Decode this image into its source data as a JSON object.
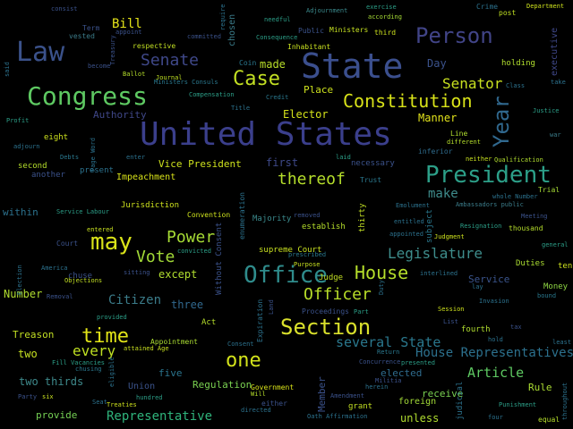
{
  "words": [
    {
      "text": "United States",
      "color": "#3b3f8c"
    },
    {
      "text": "State",
      "color": "#3b4f8e"
    },
    {
      "text": "Congress",
      "color": "#5ec962"
    },
    {
      "text": "Law",
      "color": "#3b528b"
    },
    {
      "text": "President",
      "color": "#2c9f88"
    },
    {
      "text": "Section",
      "color": "#d9e02c"
    },
    {
      "text": "may",
      "color": "#d8e219"
    },
    {
      "text": "Person",
      "color": "#414487"
    },
    {
      "text": "Office",
      "color": "#2f8c8c"
    },
    {
      "text": "Year",
      "color": "#30688e"
    },
    {
      "text": "Constitution",
      "color": "#d8e219"
    },
    {
      "text": "Case",
      "color": "#c2df23"
    },
    {
      "text": "House",
      "color": "#b5de2b"
    },
    {
      "text": "Senate",
      "color": "#3f4889"
    },
    {
      "text": "time",
      "color": "#e2e418"
    },
    {
      "text": "one",
      "color": "#d2e21b"
    },
    {
      "text": "Legislature",
      "color": "#3e8d8c"
    },
    {
      "text": "Senator",
      "color": "#c8e020"
    },
    {
      "text": "Power",
      "color": "#a6db35"
    },
    {
      "text": "Vote",
      "color": "#a2da37"
    },
    {
      "text": "Officer",
      "color": "#b8de29"
    },
    {
      "text": "thereof",
      "color": "#b5de2b"
    },
    {
      "text": "Citizen",
      "color": "#3b7c8a"
    },
    {
      "text": "every",
      "color": "#bfe022"
    },
    {
      "text": "Article",
      "color": "#5ec962"
    },
    {
      "text": "several State",
      "color": "#2a788e"
    },
    {
      "text": "House Representatives",
      "color": "#2c718e"
    },
    {
      "text": "Representative",
      "color": "#2fb47c"
    },
    {
      "text": "Bill",
      "color": "#e5e419"
    },
    {
      "text": "made",
      "color": "#b8de29"
    },
    {
      "text": "first",
      "color": "#3e4989"
    },
    {
      "text": "make",
      "color": "#3f8c8c"
    },
    {
      "text": "Number",
      "color": "#b0dd2f"
    },
    {
      "text": "Manner",
      "color": "#e1e21b"
    },
    {
      "text": "Elector",
      "color": "#d4e21a"
    },
    {
      "text": "Place",
      "color": "#cde11d"
    },
    {
      "text": "Vice President",
      "color": "#cde11d"
    },
    {
      "text": "Treason",
      "color": "#c2df23"
    },
    {
      "text": "two thirds",
      "color": "#3e8a8c"
    },
    {
      "text": "two",
      "color": "#c5e021"
    },
    {
      "text": "three",
      "color": "#31688e"
    },
    {
      "text": "except",
      "color": "#b0dd2f"
    },
    {
      "text": "Authority",
      "color": "#3f4788"
    },
    {
      "text": "Day",
      "color": "#3b528b"
    },
    {
      "text": "within",
      "color": "#2c728e"
    },
    {
      "text": "provide",
      "color": "#75d054"
    },
    {
      "text": "unless",
      "color": "#b0dd2f"
    },
    {
      "text": "five",
      "color": "#2b758e"
    },
    {
      "text": "elected",
      "color": "#2f6c8e"
    },
    {
      "text": "receive",
      "color": "#7ad151"
    },
    {
      "text": "Rule",
      "color": "#aadc32"
    },
    {
      "text": "Service",
      "color": "#3a548c"
    },
    {
      "text": "Regulation",
      "color": "#7ad151"
    },
    {
      "text": "Union",
      "color": "#3b538b"
    },
    {
      "text": "Impeachment",
      "color": "#d8e219"
    },
    {
      "text": "Jurisdiction",
      "color": "#cde11d"
    },
    {
      "text": "supreme Court",
      "color": "#c8e020"
    },
    {
      "text": "establish",
      "color": "#b5de2b"
    },
    {
      "text": "Majority",
      "color": "#3b8a8d"
    },
    {
      "text": "Convention",
      "color": "#cde11d"
    },
    {
      "text": "Money",
      "color": "#8fd744"
    },
    {
      "text": "Duties",
      "color": "#aadc32"
    },
    {
      "text": "fourth",
      "color": "#b0dd2f"
    },
    {
      "text": "holding",
      "color": "#b0dd2f"
    },
    {
      "text": "eight",
      "color": "#cde11d"
    },
    {
      "text": "second",
      "color": "#b5de2b"
    },
    {
      "text": "Judge",
      "color": "#c2df23"
    },
    {
      "text": "Act",
      "color": "#b5de2b"
    },
    {
      "text": "Appointment",
      "color": "#aadc32"
    },
    {
      "text": "Government",
      "color": "#d8e219"
    },
    {
      "text": "grant",
      "color": "#c2df23"
    },
    {
      "text": "either",
      "color": "#3b528b"
    },
    {
      "text": "foreign",
      "color": "#a2da37"
    },
    {
      "text": "necessary",
      "color": "#3b528b"
    },
    {
      "text": "inferior",
      "color": "#2f6c8e"
    },
    {
      "text": "Trust",
      "color": "#2a788e"
    },
    {
      "text": "Trial",
      "color": "#a6db35"
    },
    {
      "text": "thousand",
      "color": "#b5de2b"
    },
    {
      "text": "Line",
      "color": "#b0dd2f"
    },
    {
      "text": "different",
      "color": "#b5de2b"
    },
    {
      "text": "Public",
      "color": "#3b528b"
    },
    {
      "text": "Ministers",
      "color": "#c5e021"
    },
    {
      "text": "Inhabitant",
      "color": "#c8e020"
    },
    {
      "text": "respective",
      "color": "#c2df23"
    },
    {
      "text": "Coin",
      "color": "#2a788e"
    },
    {
      "text": "Term",
      "color": "#3b528b"
    },
    {
      "text": "vested",
      "color": "#3b7c8a"
    },
    {
      "text": "appoint",
      "color": "#3b528b"
    },
    {
      "text": "consist",
      "color": "#3b528b"
    },
    {
      "text": "Adjournment",
      "color": "#3b8a8d"
    },
    {
      "text": "exercise",
      "color": "#2c9f88"
    },
    {
      "text": "according",
      "color": "#a6db35"
    },
    {
      "text": "third",
      "color": "#cde11d"
    },
    {
      "text": "Crime",
      "color": "#2c728e"
    },
    {
      "text": "post",
      "color": "#bfe022"
    },
    {
      "text": "Department",
      "color": "#cde11d"
    },
    {
      "text": "executive",
      "color": "#3f4889"
    },
    {
      "text": "chosen",
      "color": "#3b7c8a"
    },
    {
      "text": "Treasury",
      "color": "#3b528b"
    },
    {
      "text": "become",
      "color": "#3b528b"
    },
    {
      "text": "Ballot",
      "color": "#b5de2b"
    },
    {
      "text": "Journal",
      "color": "#bfe022"
    },
    {
      "text": "Ministers Consuls",
      "color": "#2a788e"
    },
    {
      "text": "Compensation",
      "color": "#2c9f88"
    },
    {
      "text": "Title",
      "color": "#2c728e"
    },
    {
      "text": "Credit",
      "color": "#2a788e"
    },
    {
      "text": "Class",
      "color": "#2c728e"
    },
    {
      "text": "Justice",
      "color": "#2c9f88"
    },
    {
      "text": "take",
      "color": "#2c728e"
    },
    {
      "text": "war",
      "color": "#3b7c8a"
    },
    {
      "text": "Profit",
      "color": "#2c9f88"
    },
    {
      "text": "adjourn",
      "color": "#2c728e"
    },
    {
      "text": "Debts",
      "color": "#2a788e"
    },
    {
      "text": "enter",
      "color": "#2c728e"
    },
    {
      "text": "laid",
      "color": "#2c9f88"
    },
    {
      "text": "neither",
      "color": "#c8e020"
    },
    {
      "text": "Qualification",
      "color": "#b0dd2f"
    },
    {
      "text": "another",
      "color": "#3b528b"
    },
    {
      "text": "present",
      "color": "#2c728e"
    },
    {
      "text": "whole Number",
      "color": "#2c728e"
    },
    {
      "text": "Service Labour",
      "color": "#2c9f88"
    },
    {
      "text": "removed",
      "color": "#3b528b"
    },
    {
      "text": "thirty",
      "color": "#c2df23"
    },
    {
      "text": "Emolument",
      "color": "#2c728e"
    },
    {
      "text": "entitled",
      "color": "#2c728e"
    },
    {
      "text": "subject",
      "color": "#2a788e"
    },
    {
      "text": "Ambassadors public",
      "color": "#3b7c8a"
    },
    {
      "text": "Meeting",
      "color": "#3b528b"
    },
    {
      "text": "Resignation",
      "color": "#2c9f88"
    },
    {
      "text": "Judgment",
      "color": "#cde11d"
    },
    {
      "text": "appointed",
      "color": "#2c728e"
    },
    {
      "text": "general",
      "color": "#2c9f88"
    },
    {
      "text": "Court",
      "color": "#3b528b"
    },
    {
      "text": "entered",
      "color": "#c8e020"
    },
    {
      "text": "convicted",
      "color": "#2c9f88"
    },
    {
      "text": "chuse",
      "color": "#3b528b"
    },
    {
      "text": "America",
      "color": "#2c728e"
    },
    {
      "text": "sitting",
      "color": "#3b528b"
    },
    {
      "text": "Objections",
      "color": "#c2df23"
    },
    {
      "text": "Removal",
      "color": "#3b528b"
    },
    {
      "text": "prescribed",
      "color": "#2a788e"
    },
    {
      "text": "Purpose",
      "color": "#c8e020"
    },
    {
      "text": "interlined",
      "color": "#2c728e"
    },
    {
      "text": "lay",
      "color": "#2c728e"
    },
    {
      "text": "bound",
      "color": "#2a788e"
    },
    {
      "text": "ten",
      "color": "#cde11d"
    },
    {
      "text": "Invasion",
      "color": "#2c728e"
    },
    {
      "text": "Session",
      "color": "#cde11d"
    },
    {
      "text": "List",
      "color": "#3b528b"
    },
    {
      "text": "Proceedings",
      "color": "#3b528b"
    },
    {
      "text": "Part",
      "color": "#2c9f88"
    },
    {
      "text": "provided",
      "color": "#2c9f88"
    },
    {
      "text": "attained Age",
      "color": "#c8e020"
    },
    {
      "text": "Fill Vacancies",
      "color": "#2c9f88"
    },
    {
      "text": "chusing",
      "color": "#2a788e"
    },
    {
      "text": "Consent",
      "color": "#2c728e"
    },
    {
      "text": "Return",
      "color": "#2a788e"
    },
    {
      "text": "Concurrence",
      "color": "#3b528b"
    },
    {
      "text": "presented",
      "color": "#2c9f88"
    },
    {
      "text": "hold",
      "color": "#2c728e"
    },
    {
      "text": "tax",
      "color": "#3b528b"
    },
    {
      "text": "least",
      "color": "#2c728e"
    },
    {
      "text": "Seat",
      "color": "#2c728e"
    },
    {
      "text": "Treaties",
      "color": "#cde11d"
    },
    {
      "text": "Party",
      "color": "#3b528b"
    },
    {
      "text": "six",
      "color": "#c8e020"
    },
    {
      "text": "hundred",
      "color": "#2c9f88"
    },
    {
      "text": "Amendment",
      "color": "#3b528b"
    },
    {
      "text": "herein",
      "color": "#2c728e"
    },
    {
      "text": "Punishment",
      "color": "#2c9f88"
    },
    {
      "text": "Oath Affirmation",
      "color": "#2c728e"
    },
    {
      "text": "four",
      "color": "#2c728e"
    },
    {
      "text": "equal",
      "color": "#b5de2b"
    },
    {
      "text": "directed",
      "color": "#2c728e"
    },
    {
      "text": "Will",
      "color": "#b5de2b"
    },
    {
      "text": "Militia",
      "color": "#3b528b"
    },
    {
      "text": "Consequence",
      "color": "#2c9f88"
    },
    {
      "text": "needful",
      "color": "#2c9f88"
    },
    {
      "text": "committed",
      "color": "#3b528b"
    },
    {
      "text": "require",
      "color": "#2c728e"
    },
    {
      "text": "Without Consent",
      "color": "#3b528b"
    },
    {
      "text": "enumeration",
      "color": "#2c728e"
    },
    {
      "text": "Expiration",
      "color": "#2c728e"
    },
    {
      "text": "Land",
      "color": "#3b528b"
    },
    {
      "text": "Election",
      "color": "#2c728e"
    },
    {
      "text": "Duty",
      "color": "#2c728e"
    },
    {
      "text": "Member",
      "color": "#3b528b"
    },
    {
      "text": "judicial",
      "color": "#2c728e"
    },
    {
      "text": "throughout",
      "color": "#2c728e"
    },
    {
      "text": "said",
      "color": "#2c728e"
    },
    {
      "text": "eligible",
      "color": "#2c728e"
    },
    {
      "text": "Page Word",
      "color": "#2c728e"
    }
  ]
}
